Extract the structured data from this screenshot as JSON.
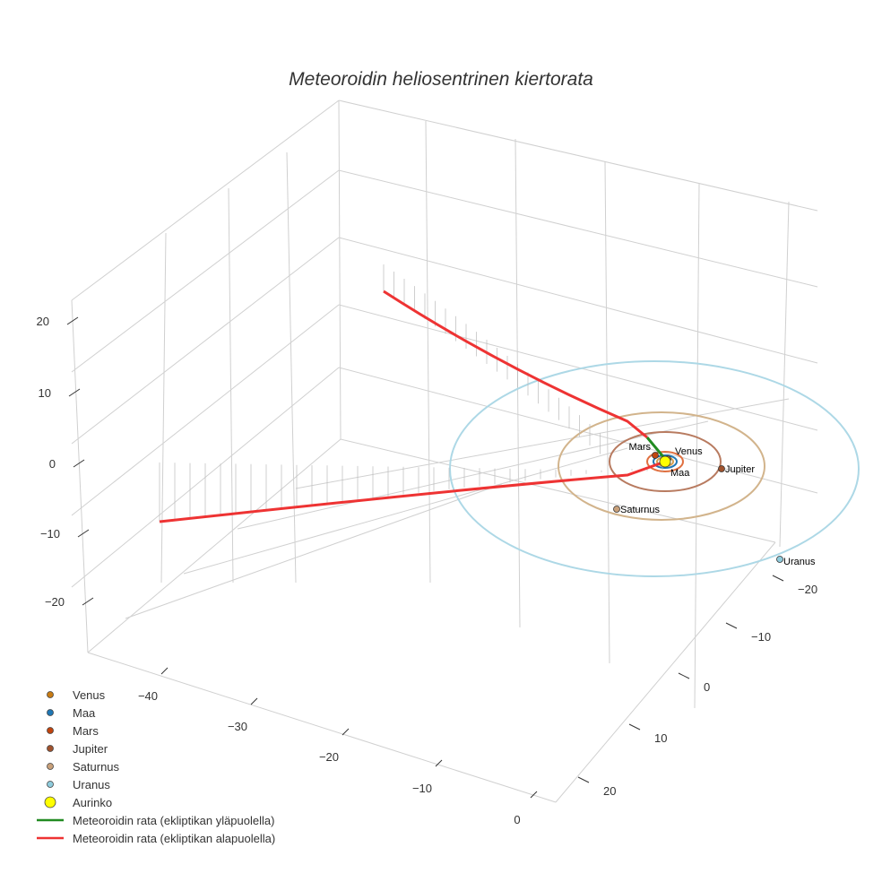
{
  "chart_data": {
    "type": "scatter3d",
    "title": "Meteoroidin heliosentrinen kiertorata",
    "axes": {
      "x": {
        "ticks": [
          -40,
          -30,
          -20,
          -10,
          0
        ],
        "tick_labels": [
          "−40",
          "−30",
          "−20",
          "−10",
          "0"
        ]
      },
      "y": {
        "ticks": [
          -20,
          -10,
          0,
          10,
          20
        ],
        "tick_labels": [
          "−20",
          "−10",
          "0",
          "10",
          "20"
        ]
      },
      "z": {
        "ticks": [
          20,
          10,
          0,
          -10,
          -20
        ],
        "tick_labels": [
          "20",
          "10",
          "0",
          "−10",
          "−20"
        ]
      }
    },
    "planets": [
      {
        "name": "Venus",
        "color": "#c87b14"
      },
      {
        "name": "Maa",
        "color": "#1f77b4"
      },
      {
        "name": "Mars",
        "color": "#c1440e"
      },
      {
        "name": "Jupiter",
        "color": "#a0522d"
      },
      {
        "name": "Saturnus",
        "color": "#c8a07a"
      },
      {
        "name": "Uranus",
        "color": "#8ecbdc"
      },
      {
        "name": "Aurinko",
        "color": "#ffff00"
      }
    ],
    "orbit_colors": {
      "Uranus": "#add8e6",
      "Saturnus": "#d2b48c",
      "Jupiter": "#b87b60",
      "Mars": "#e07040",
      "Maa": "#1f77b4",
      "Venus": "#d4a050"
    },
    "trajectory": [
      {
        "name": "Meteoroidin rata (ekliptikan yläpuolella)",
        "color": "#228b22"
      },
      {
        "name": "Meteoroidin rata (ekliptikan alapuolella)",
        "color": "#ee3333"
      }
    ],
    "legend_position": "bottom-left"
  }
}
